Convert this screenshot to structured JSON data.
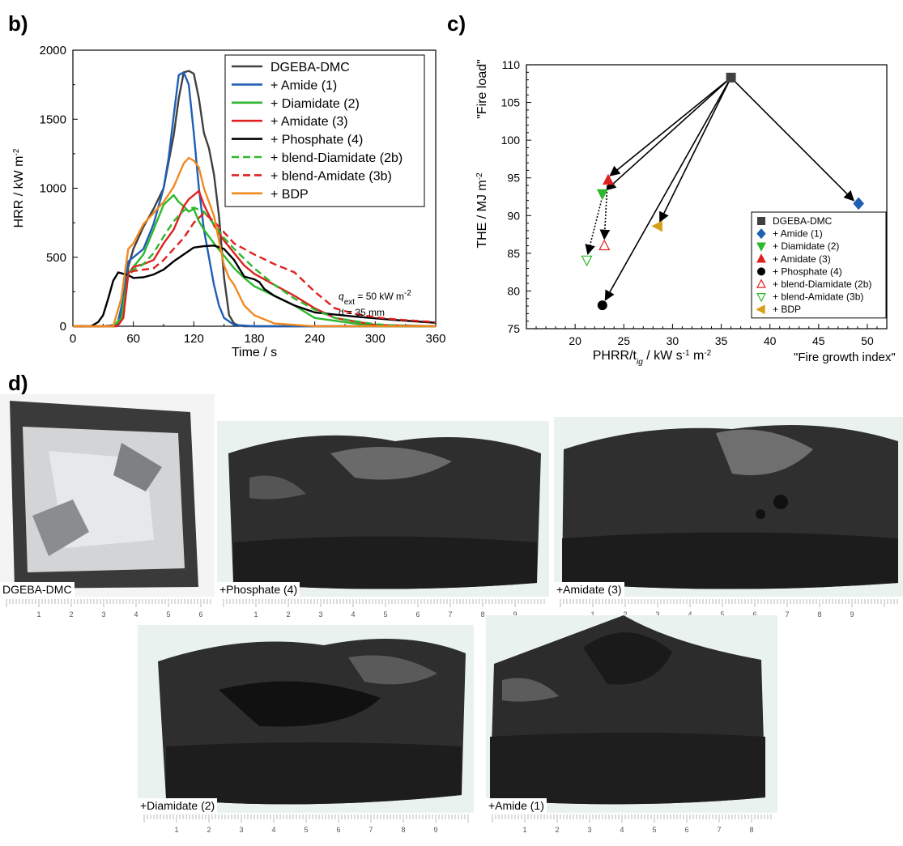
{
  "panels": {
    "b": "b)",
    "c": "c)",
    "d": "d)"
  },
  "chart_data": [
    {
      "type": "line",
      "panel": "b)",
      "xlabel": "Time /  s",
      "ylabel": "HRR /  kW m",
      "ylabel_sup": "-2",
      "xlim": [
        0,
        360
      ],
      "ylim": [
        0,
        2000
      ],
      "xticks": [
        0,
        60,
        120,
        180,
        240,
        300,
        360
      ],
      "yticks": [
        0,
        500,
        1000,
        1500,
        2000
      ],
      "legend_position": "top-right",
      "annotation": {
        "q_symbol": "q",
        "q_sub": "ext",
        "q_text": " = 50 kW m",
        "q_sup": "-2",
        "d_text": "d = 35 mm"
      },
      "series": [
        {
          "name": "DGEBA-DMC",
          "color": "#404040",
          "dash": false,
          "x": [
            0,
            30,
            44,
            50,
            55,
            60,
            70,
            80,
            90,
            100,
            105,
            110,
            115,
            120,
            125,
            130,
            135,
            140,
            145,
            150,
            155,
            160,
            165,
            170,
            180,
            200,
            240,
            300,
            360
          ],
          "y": [
            0,
            0,
            10,
            150,
            430,
            560,
            720,
            850,
            1000,
            1380,
            1650,
            1840,
            1850,
            1830,
            1650,
            1400,
            1290,
            1100,
            800,
            350,
            80,
            20,
            5,
            0,
            0,
            0,
            0,
            0,
            0
          ]
        },
        {
          "name": "+ Amide (1)",
          "color": "#1f5fb4",
          "dash": false,
          "x": [
            0,
            30,
            44,
            50,
            55,
            60,
            70,
            80,
            90,
            95,
            100,
            105,
            110,
            115,
            120,
            125,
            130,
            135,
            140,
            145,
            150,
            160,
            180,
            200,
            360
          ],
          "y": [
            0,
            0,
            10,
            200,
            470,
            500,
            560,
            740,
            1000,
            1220,
            1520,
            1820,
            1840,
            1750,
            1400,
            1000,
            700,
            500,
            300,
            150,
            60,
            10,
            0,
            0,
            0
          ]
        },
        {
          "name": "+ Diamidate (2)",
          "color": "#2db82d",
          "dash": false,
          "x": [
            0,
            40,
            48,
            55,
            60,
            70,
            80,
            90,
            100,
            105,
            110,
            115,
            120,
            125,
            130,
            140,
            150,
            160,
            170,
            180,
            200,
            220,
            240,
            300,
            360
          ],
          "y": [
            0,
            0,
            60,
            380,
            430,
            520,
            700,
            880,
            950,
            900,
            870,
            830,
            850,
            760,
            700,
            600,
            510,
            420,
            350,
            290,
            220,
            150,
            60,
            0,
            0
          ]
        },
        {
          "name": "+ Amidate (3)",
          "color": "#e02020",
          "dash": false,
          "x": [
            0,
            44,
            50,
            55,
            60,
            70,
            80,
            90,
            100,
            110,
            115,
            120,
            125,
            130,
            140,
            150,
            160,
            170,
            180,
            200,
            220,
            240,
            260,
            300,
            360
          ],
          "y": [
            0,
            0,
            60,
            380,
            430,
            450,
            480,
            600,
            700,
            870,
            920,
            950,
            980,
            880,
            730,
            620,
            530,
            440,
            380,
            300,
            220,
            130,
            60,
            10,
            0
          ]
        },
        {
          "name": "+ Phosphate (4)",
          "color": "#000000",
          "dash": false,
          "x": [
            0,
            18,
            25,
            30,
            35,
            40,
            45,
            50,
            55,
            60,
            70,
            80,
            90,
            100,
            110,
            120,
            130,
            140,
            150,
            160,
            170,
            180,
            185,
            190,
            200,
            220,
            240,
            280,
            320,
            360
          ],
          "y": [
            0,
            0,
            30,
            80,
            200,
            330,
            390,
            380,
            370,
            350,
            355,
            375,
            410,
            470,
            520,
            570,
            580,
            585,
            560,
            480,
            360,
            340,
            320,
            270,
            220,
            150,
            100,
            70,
            45,
            25
          ]
        },
        {
          "name": "+ blend-Diamidate (2b)",
          "color": "#2db82d",
          "dash": true,
          "x": [
            0,
            44,
            50,
            55,
            60,
            70,
            80,
            90,
            100,
            110,
            120,
            130,
            140,
            150,
            160,
            180,
            200,
            220,
            240,
            260,
            300,
            320,
            360
          ],
          "y": [
            0,
            0,
            80,
            390,
            410,
            450,
            530,
            650,
            760,
            840,
            860,
            830,
            740,
            640,
            560,
            420,
            300,
            200,
            120,
            60,
            15,
            5,
            0
          ]
        },
        {
          "name": "+ blend-Amidate (3b)",
          "color": "#e02020",
          "dash": true,
          "x": [
            0,
            44,
            50,
            55,
            60,
            70,
            80,
            90,
            100,
            110,
            120,
            130,
            140,
            150,
            160,
            170,
            180,
            200,
            220,
            240,
            260,
            280,
            300,
            320,
            340,
            360
          ],
          "y": [
            0,
            0,
            60,
            380,
            400,
            410,
            420,
            480,
            560,
            640,
            750,
            820,
            760,
            680,
            600,
            560,
            520,
            450,
            390,
            250,
            130,
            90,
            65,
            50,
            40,
            30
          ]
        },
        {
          "name": "+ BDP",
          "color": "#f08a20",
          "dash": false,
          "x": [
            0,
            40,
            48,
            55,
            60,
            70,
            80,
            90,
            100,
            110,
            115,
            120,
            125,
            130,
            135,
            140,
            145,
            150,
            155,
            160,
            170,
            180,
            200,
            240,
            360
          ],
          "y": [
            0,
            0,
            200,
            560,
            600,
            740,
            820,
            900,
            1010,
            1180,
            1220,
            1200,
            1150,
            1000,
            900,
            800,
            620,
            440,
            350,
            300,
            150,
            80,
            20,
            0,
            0
          ]
        }
      ]
    },
    {
      "type": "scatter",
      "panel": "c)",
      "xlabel": "PHRR/t",
      "xlabel_sub": "ig",
      "xlabel_unit": "  /  kW s",
      "xlabel_sup1": "-1",
      "xlabel_m": " m",
      "xlabel_sup2": "-2",
      "x_note": "\"Fire growth index\"",
      "ylabel": "THE /  MJ m",
      "ylabel_sup": "-2",
      "y_note": "\"Fire load\"",
      "xlim": [
        15,
        52
      ],
      "ylim": [
        75,
        110
      ],
      "xticks": [
        20,
        25,
        30,
        35,
        40,
        45,
        50
      ],
      "yticks": [
        75,
        80,
        85,
        90,
        95,
        100,
        105,
        110
      ],
      "legend_position": "bottom-right",
      "points": [
        {
          "name": "DGEBA-DMC",
          "x": 36.0,
          "y": 108.3,
          "marker": "square",
          "color": "#404040",
          "filled": true
        },
        {
          "name": "+ Amide (1)",
          "x": 49.1,
          "y": 91.6,
          "marker": "diamond",
          "color": "#1f5fb4",
          "filled": true
        },
        {
          "name": "+ Diamidate (2)",
          "x": 22.8,
          "y": 92.9,
          "marker": "triangle-down",
          "color": "#2db82d",
          "filled": true
        },
        {
          "name": "+ Amidate (3)",
          "x": 23.4,
          "y": 94.7,
          "marker": "triangle-up",
          "color": "#e02020",
          "filled": true
        },
        {
          "name": "+ Phosphate (4)",
          "x": 22.8,
          "y": 78.1,
          "marker": "circle",
          "color": "#000000",
          "filled": true
        },
        {
          "name": "+ blend-Diamidate (2b)",
          "x": 23.0,
          "y": 86.0,
          "marker": "triangle-up",
          "color": "#e02020",
          "filled": false
        },
        {
          "name": "+ blend-Amidate (3b)",
          "x": 21.2,
          "y": 84.1,
          "marker": "triangle-down",
          "color": "#2db82d",
          "filled": false
        },
        {
          "name": "+ BDP",
          "x": 28.5,
          "y": 88.6,
          "marker": "triangle-left",
          "color": "#d4a017",
          "filled": true
        }
      ],
      "arrows": [
        {
          "from": [
            36.0,
            108.3
          ],
          "to": [
            23.6,
            95.3
          ],
          "style": "solid"
        },
        {
          "from": [
            36.0,
            108.3
          ],
          "to": [
            23.2,
            93.4
          ],
          "style": "solid"
        },
        {
          "from": [
            36.0,
            108.3
          ],
          "to": [
            28.7,
            89.2
          ],
          "style": "solid"
        },
        {
          "from": [
            36.0,
            108.3
          ],
          "to": [
            23.1,
            78.8
          ],
          "style": "solid"
        },
        {
          "from": [
            36.0,
            108.3
          ],
          "to": [
            48.6,
            92.0
          ],
          "style": "solid"
        },
        {
          "from": [
            23.3,
            94.0
          ],
          "to": [
            23.0,
            86.9
          ],
          "style": "dotted"
        },
        {
          "from": [
            22.7,
            92.0
          ],
          "to": [
            21.3,
            84.9
          ],
          "style": "dotted"
        }
      ]
    }
  ],
  "photos": [
    {
      "caption": "DGEBA-DMC",
      "tone": "white"
    },
    {
      "caption": "+Phosphate (4)",
      "tone": "dark"
    },
    {
      "caption": "+Amidate (3)",
      "tone": "dark"
    },
    {
      "caption": "+Diamidate (2)",
      "tone": "dark"
    },
    {
      "caption": "+Amide (1)",
      "tone": "dark"
    }
  ],
  "ruler_numbers": [
    "1",
    "2",
    "3",
    "4",
    "5",
    "6",
    "7",
    "8",
    "9"
  ],
  "colors": {
    "axis": "#000000",
    "photo_dark": "#2e2e2e",
    "photo_light": "#cfd1d4",
    "ruler": "#9a9a9a"
  }
}
